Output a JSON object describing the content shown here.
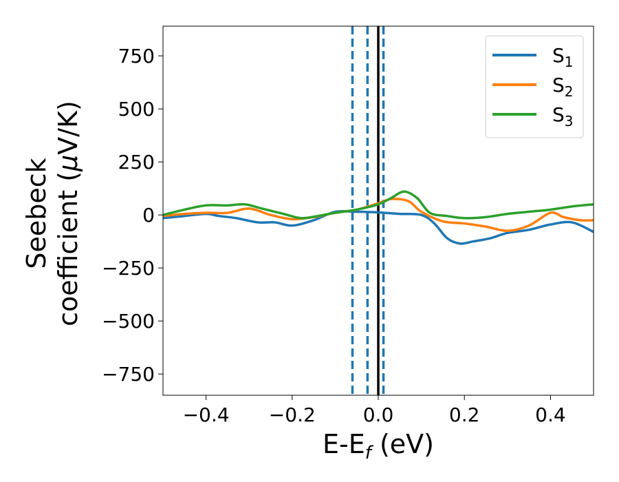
{
  "chart_data": {
    "type": "line",
    "xlabel_main": "E-E",
    "xlabel_sub": "f",
    "xlabel_unit": " (eV)",
    "ylabel_line1": "Seebeck",
    "ylabel_line2_prefix": "coefficient  (",
    "ylabel_mu": "μ",
    "ylabel_line2_suffix": "V/K)",
    "xlim": [
      -0.5,
      0.5
    ],
    "ylim": [
      -850,
      890
    ],
    "x_ticks": [
      -0.4,
      -0.2,
      0.0,
      0.2,
      0.4
    ],
    "x_tick_labels": [
      "−0.4",
      "−0.2",
      "0.0",
      "0.2",
      "0.4"
    ],
    "y_ticks": [
      -750,
      -500,
      -250,
      0,
      250,
      500,
      750
    ],
    "y_tick_labels": [
      "−750",
      "−500",
      "−250",
      "0",
      "250",
      "500",
      "750"
    ],
    "grid": false,
    "legend_position": "top-right",
    "vlines": [
      {
        "x": -0.06,
        "style": "dashed",
        "color": "#1f77b4"
      },
      {
        "x": -0.025,
        "style": "dashed",
        "color": "#1f77b4"
      },
      {
        "x": 0.012,
        "style": "dashed",
        "color": "#1f77b4"
      },
      {
        "x": 0.0,
        "style": "solid",
        "color": "#000000"
      }
    ],
    "series": [
      {
        "name": "S",
        "sub": "1",
        "color": "#1f77b4",
        "x": [
          -0.5,
          -0.45,
          -0.4,
          -0.37,
          -0.33,
          -0.28,
          -0.24,
          -0.2,
          -0.15,
          -0.1,
          -0.05,
          0.0,
          0.05,
          0.1,
          0.13,
          0.16,
          0.19,
          0.22,
          0.26,
          0.3,
          0.35,
          0.4,
          0.45,
          0.5
        ],
        "y": [
          -15,
          -5,
          5,
          -5,
          -15,
          -35,
          -35,
          -50,
          -25,
          15,
          15,
          12,
          5,
          0,
          -40,
          -110,
          -135,
          -125,
          -110,
          -85,
          -70,
          -45,
          -35,
          -80
        ]
      },
      {
        "name": "S",
        "sub": "2",
        "color": "#ff7f0e",
        "x": [
          -0.5,
          -0.45,
          -0.4,
          -0.35,
          -0.3,
          -0.25,
          -0.2,
          -0.15,
          -0.1,
          -0.05,
          0.0,
          0.03,
          0.07,
          0.1,
          0.15,
          0.2,
          0.25,
          0.3,
          0.35,
          0.4,
          0.43,
          0.47,
          0.5
        ],
        "y": [
          -5,
          5,
          10,
          10,
          30,
          0,
          -20,
          -10,
          10,
          25,
          55,
          75,
          65,
          15,
          -30,
          -40,
          -55,
          -75,
          -50,
          10,
          -10,
          -25,
          -25
        ]
      },
      {
        "name": "S",
        "sub": "3",
        "color": "#2ca02c",
        "x": [
          -0.5,
          -0.45,
          -0.4,
          -0.35,
          -0.31,
          -0.27,
          -0.22,
          -0.18,
          -0.14,
          -0.1,
          -0.05,
          0.0,
          0.03,
          0.06,
          0.09,
          0.12,
          0.16,
          0.2,
          0.25,
          0.3,
          0.35,
          0.4,
          0.45,
          0.5
        ],
        "y": [
          0,
          25,
          45,
          45,
          50,
          30,
          5,
          -15,
          -5,
          10,
          25,
          50,
          80,
          110,
          80,
          10,
          -5,
          -15,
          -10,
          5,
          15,
          25,
          40,
          50
        ]
      }
    ]
  }
}
